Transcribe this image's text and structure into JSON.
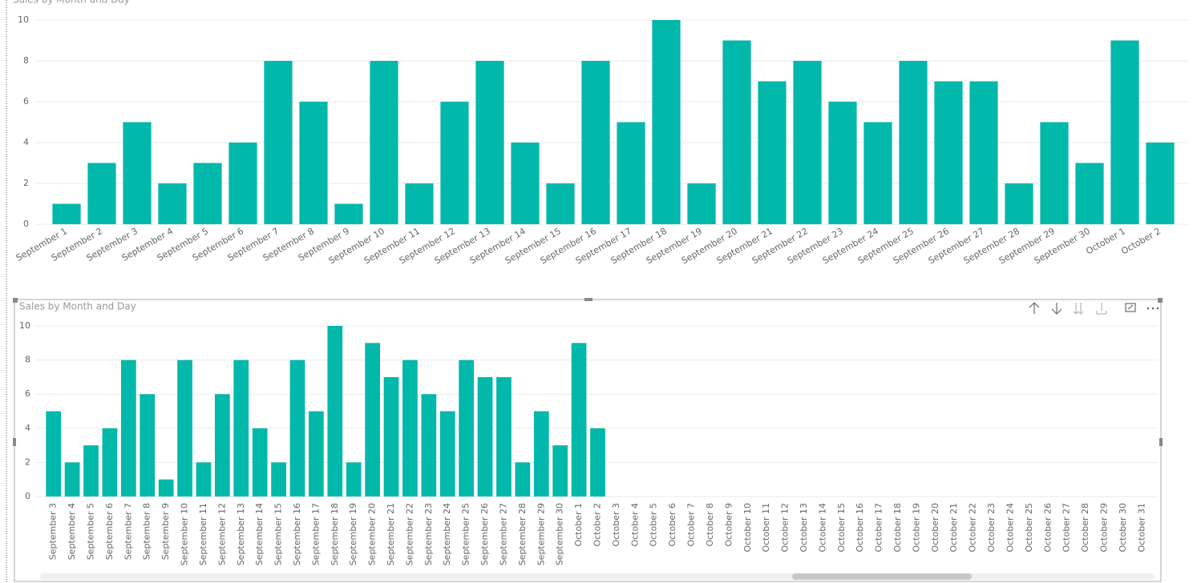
{
  "chart_data": [
    {
      "type": "bar",
      "title": "Sales by Month and Day",
      "categories": [
        "September 1",
        "September 2",
        "September 3",
        "September 4",
        "September 5",
        "September 6",
        "September 7",
        "September 8",
        "September 9",
        "September 10",
        "September 11",
        "September 12",
        "September 13",
        "September 14",
        "September 15",
        "September 16",
        "September 17",
        "September 18",
        "September 19",
        "September 20",
        "September 21",
        "September 22",
        "September 23",
        "September 24",
        "September 25",
        "September 26",
        "September 27",
        "September 28",
        "September 29",
        "September 30",
        "October 1",
        "October 2"
      ],
      "values": [
        1,
        3,
        5,
        2,
        3,
        4,
        8,
        6,
        1,
        8,
        2,
        6,
        8,
        4,
        2,
        8,
        5,
        10,
        2,
        9,
        7,
        8,
        6,
        5,
        8,
        7,
        7,
        2,
        5,
        3,
        9,
        4
      ],
      "color": "#01b8aa",
      "ylim": [
        0,
        10
      ],
      "yticks": [
        0,
        2,
        4,
        6,
        8,
        10
      ],
      "grid": true
    },
    {
      "type": "bar",
      "title": "Sales by Month and Day",
      "categories": [
        "September 3",
        "September 4",
        "September 5",
        "September 6",
        "September 7",
        "September 8",
        "September 9",
        "September 10",
        "September 11",
        "September 12",
        "September 13",
        "September 14",
        "September 15",
        "September 16",
        "September 17",
        "September 18",
        "September 19",
        "September 20",
        "September 21",
        "September 22",
        "September 23",
        "September 24",
        "September 25",
        "September 26",
        "September 27",
        "September 28",
        "September 29",
        "September 30",
        "October 1",
        "October 2",
        "October 3",
        "October 4",
        "October 5",
        "October 6",
        "October 7",
        "October 8",
        "October 9",
        "October 10",
        "October 11",
        "October 12",
        "October 13",
        "October 14",
        "October 15",
        "October 16",
        "October 17",
        "October 18",
        "October 19",
        "October 20",
        "October 21",
        "October 22",
        "October 23",
        "October 24",
        "October 25",
        "October 26",
        "October 27",
        "October 28",
        "October 29",
        "October 30",
        "October 31"
      ],
      "values": [
        5,
        2,
        3,
        4,
        8,
        6,
        1,
        8,
        2,
        6,
        8,
        4,
        2,
        8,
        5,
        10,
        2,
        9,
        7,
        8,
        6,
        5,
        8,
        7,
        7,
        2,
        5,
        3,
        9,
        4,
        null,
        null,
        null,
        null,
        null,
        null,
        null,
        null,
        null,
        null,
        null,
        null,
        null,
        null,
        null,
        null,
        null,
        null,
        null,
        null,
        null,
        null,
        null,
        null,
        null,
        null,
        null,
        null,
        null
      ],
      "color": "#01b8aa",
      "ylim": [
        0,
        10
      ],
      "yticks": [
        0,
        2,
        4,
        6,
        8,
        10
      ],
      "grid": true
    }
  ]
}
